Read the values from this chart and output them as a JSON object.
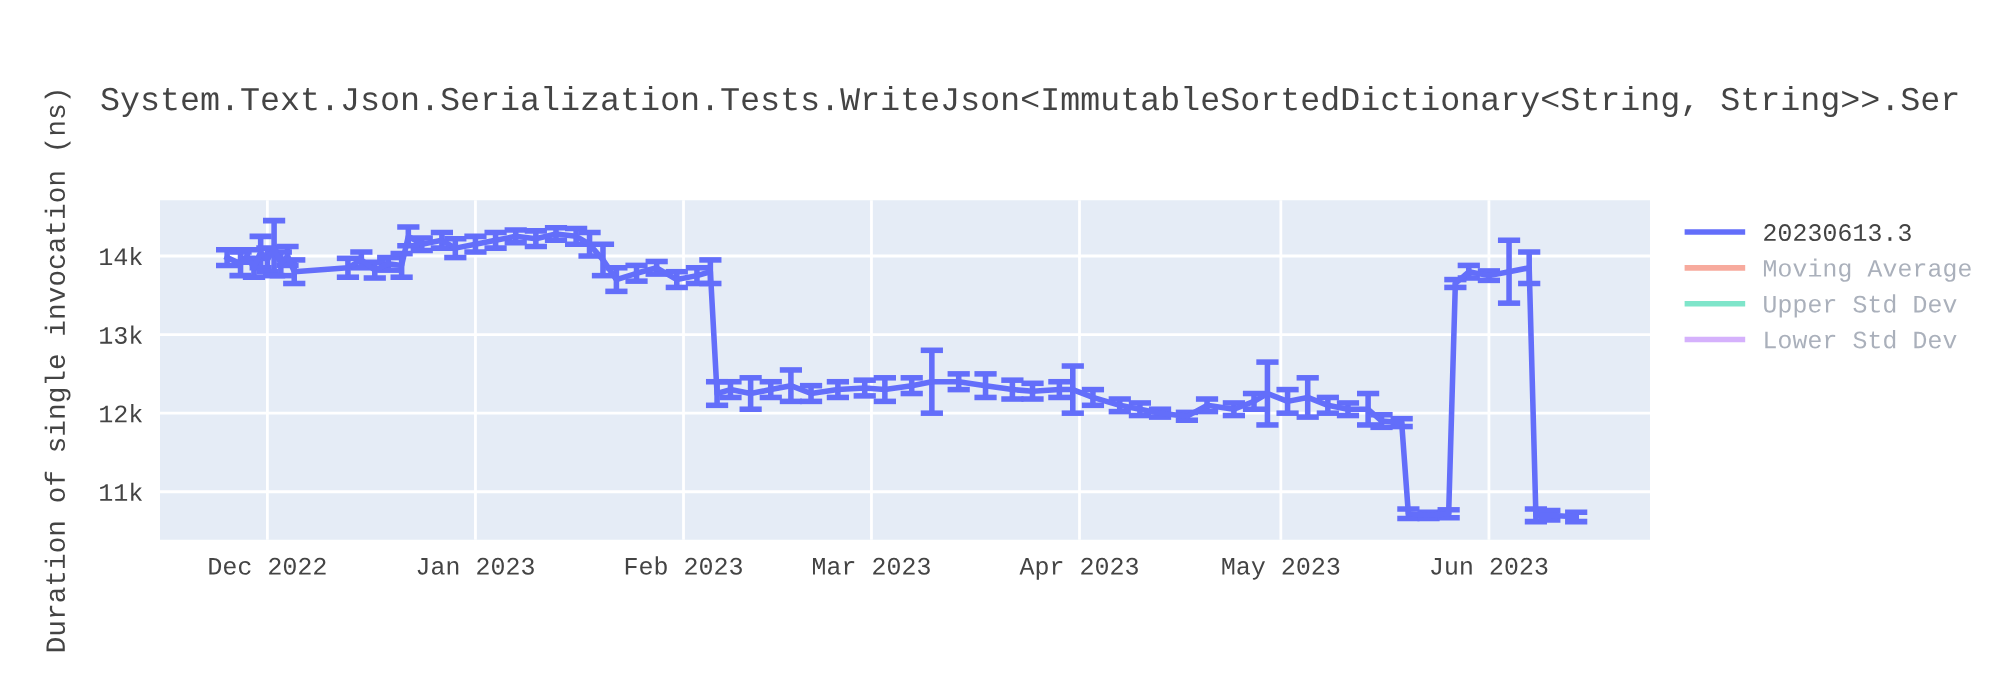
{
  "chart_data": {
    "type": "line",
    "title": "System.Text.Json.Serialization.Tests.WriteJson<ImmutableSortedDictionary<String, String>>.Ser",
    "ylabel": "Duration of single invocation (ns)",
    "xlim": [
      "2022-11-15",
      "2023-06-25"
    ],
    "ylim": [
      10390,
      14710
    ],
    "xticks": [
      {
        "value": "2022-12-01",
        "label": "Dec 2022"
      },
      {
        "value": "2023-01-01",
        "label": "Jan 2023"
      },
      {
        "value": "2023-02-01",
        "label": "Feb 2023"
      },
      {
        "value": "2023-03-01",
        "label": "Mar 2023"
      },
      {
        "value": "2023-04-01",
        "label": "Apr 2023"
      },
      {
        "value": "2023-05-01",
        "label": "May 2023"
      },
      {
        "value": "2023-06-01",
        "label": "Jun 2023"
      }
    ],
    "yticks": [
      {
        "value": 11000,
        "label": "11k"
      },
      {
        "value": 12000,
        "label": "12k"
      },
      {
        "value": 13000,
        "label": "13k"
      },
      {
        "value": 14000,
        "label": "14k"
      }
    ],
    "grid": true,
    "legend": "top right",
    "marker": "none",
    "line_style": "solid",
    "series": [
      {
        "name": "20230613.3",
        "color": "#636efa",
        "x": [
          "2022-11-25",
          "2022-11-27",
          "2022-11-28",
          "2022-11-29",
          "2022-11-30",
          "2022-12-01",
          "2022-12-02",
          "2022-12-03",
          "2022-12-04",
          "2022-12-05",
          "2022-12-13",
          "2022-12-15",
          "2022-12-17",
          "2022-12-19",
          "2022-12-21",
          "2022-12-22",
          "2022-12-24",
          "2022-12-27",
          "2022-12-29",
          "2023-01-01",
          "2023-01-04",
          "2023-01-07",
          "2023-01-10",
          "2023-01-13",
          "2023-01-16",
          "2023-01-18",
          "2023-01-20",
          "2023-01-22",
          "2023-01-25",
          "2023-01-28",
          "2023-01-31",
          "2023-02-03",
          "2023-02-05",
          "2023-02-06",
          "2023-02-08",
          "2023-02-11",
          "2023-02-14",
          "2023-02-17",
          "2023-02-20",
          "2023-02-24",
          "2023-02-28",
          "2023-03-03",
          "2023-03-07",
          "2023-03-10",
          "2023-03-14",
          "2023-03-18",
          "2023-03-22",
          "2023-03-25",
          "2023-03-29",
          "2023-03-31",
          "2023-04-03",
          "2023-04-07",
          "2023-04-10",
          "2023-04-13",
          "2023-04-17",
          "2023-04-20",
          "2023-04-24",
          "2023-04-27",
          "2023-04-29",
          "2023-05-02",
          "2023-05-05",
          "2023-05-08",
          "2023-05-11",
          "2023-05-14",
          "2023-05-16",
          "2023-05-19",
          "2023-05-20",
          "2023-05-23",
          "2023-05-26",
          "2023-05-27",
          "2023-05-29",
          "2023-06-01",
          "2023-06-04",
          "2023-06-07",
          "2023-06-08",
          "2023-06-10",
          "2023-06-14"
        ],
        "values": [
          13980,
          13900,
          14000,
          13850,
          14050,
          13950,
          14100,
          13900,
          14000,
          13800,
          13850,
          13950,
          13820,
          13900,
          13880,
          14250,
          14150,
          14200,
          14100,
          14150,
          14200,
          14250,
          14220,
          14280,
          14250,
          14150,
          13950,
          13700,
          13780,
          13850,
          13700,
          13750,
          13800,
          12250,
          12300,
          12250,
          12300,
          12350,
          12250,
          12300,
          12320,
          12300,
          12350,
          12400,
          12400,
          12350,
          12300,
          12280,
          12300,
          12300,
          12200,
          12100,
          12050,
          12000,
          11960,
          12100,
          12050,
          12150,
          12250,
          12150,
          12200,
          12100,
          12050,
          12050,
          11900,
          11880,
          10720,
          10700,
          10720,
          13650,
          13800,
          13750,
          13800,
          13850,
          10700,
          10700,
          10680
        ],
        "errors": [
          100,
          150,
          80,
          120,
          200,
          150,
          350,
          150,
          120,
          150,
          120,
          100,
          100,
          80,
          150,
          120,
          80,
          100,
          120,
          100,
          100,
          80,
          100,
          80,
          100,
          150,
          200,
          150,
          100,
          80,
          100,
          100,
          150,
          150,
          100,
          200,
          100,
          200,
          100,
          100,
          100,
          150,
          100,
          400,
          100,
          150,
          120,
          100,
          100,
          300,
          100,
          80,
          80,
          50,
          50,
          80,
          80,
          100,
          400,
          150,
          250,
          100,
          80,
          200,
          80,
          50,
          60,
          40,
          50,
          50,
          80,
          60,
          400,
          200,
          80,
          60,
          60
        ]
      },
      {
        "name": "Moving Average",
        "color": "#ef553b"
      },
      {
        "name": "Upper Std Dev",
        "color": "#00cc96"
      },
      {
        "name": "Lower Std Dev",
        "color": "#ab63fa"
      }
    ]
  }
}
